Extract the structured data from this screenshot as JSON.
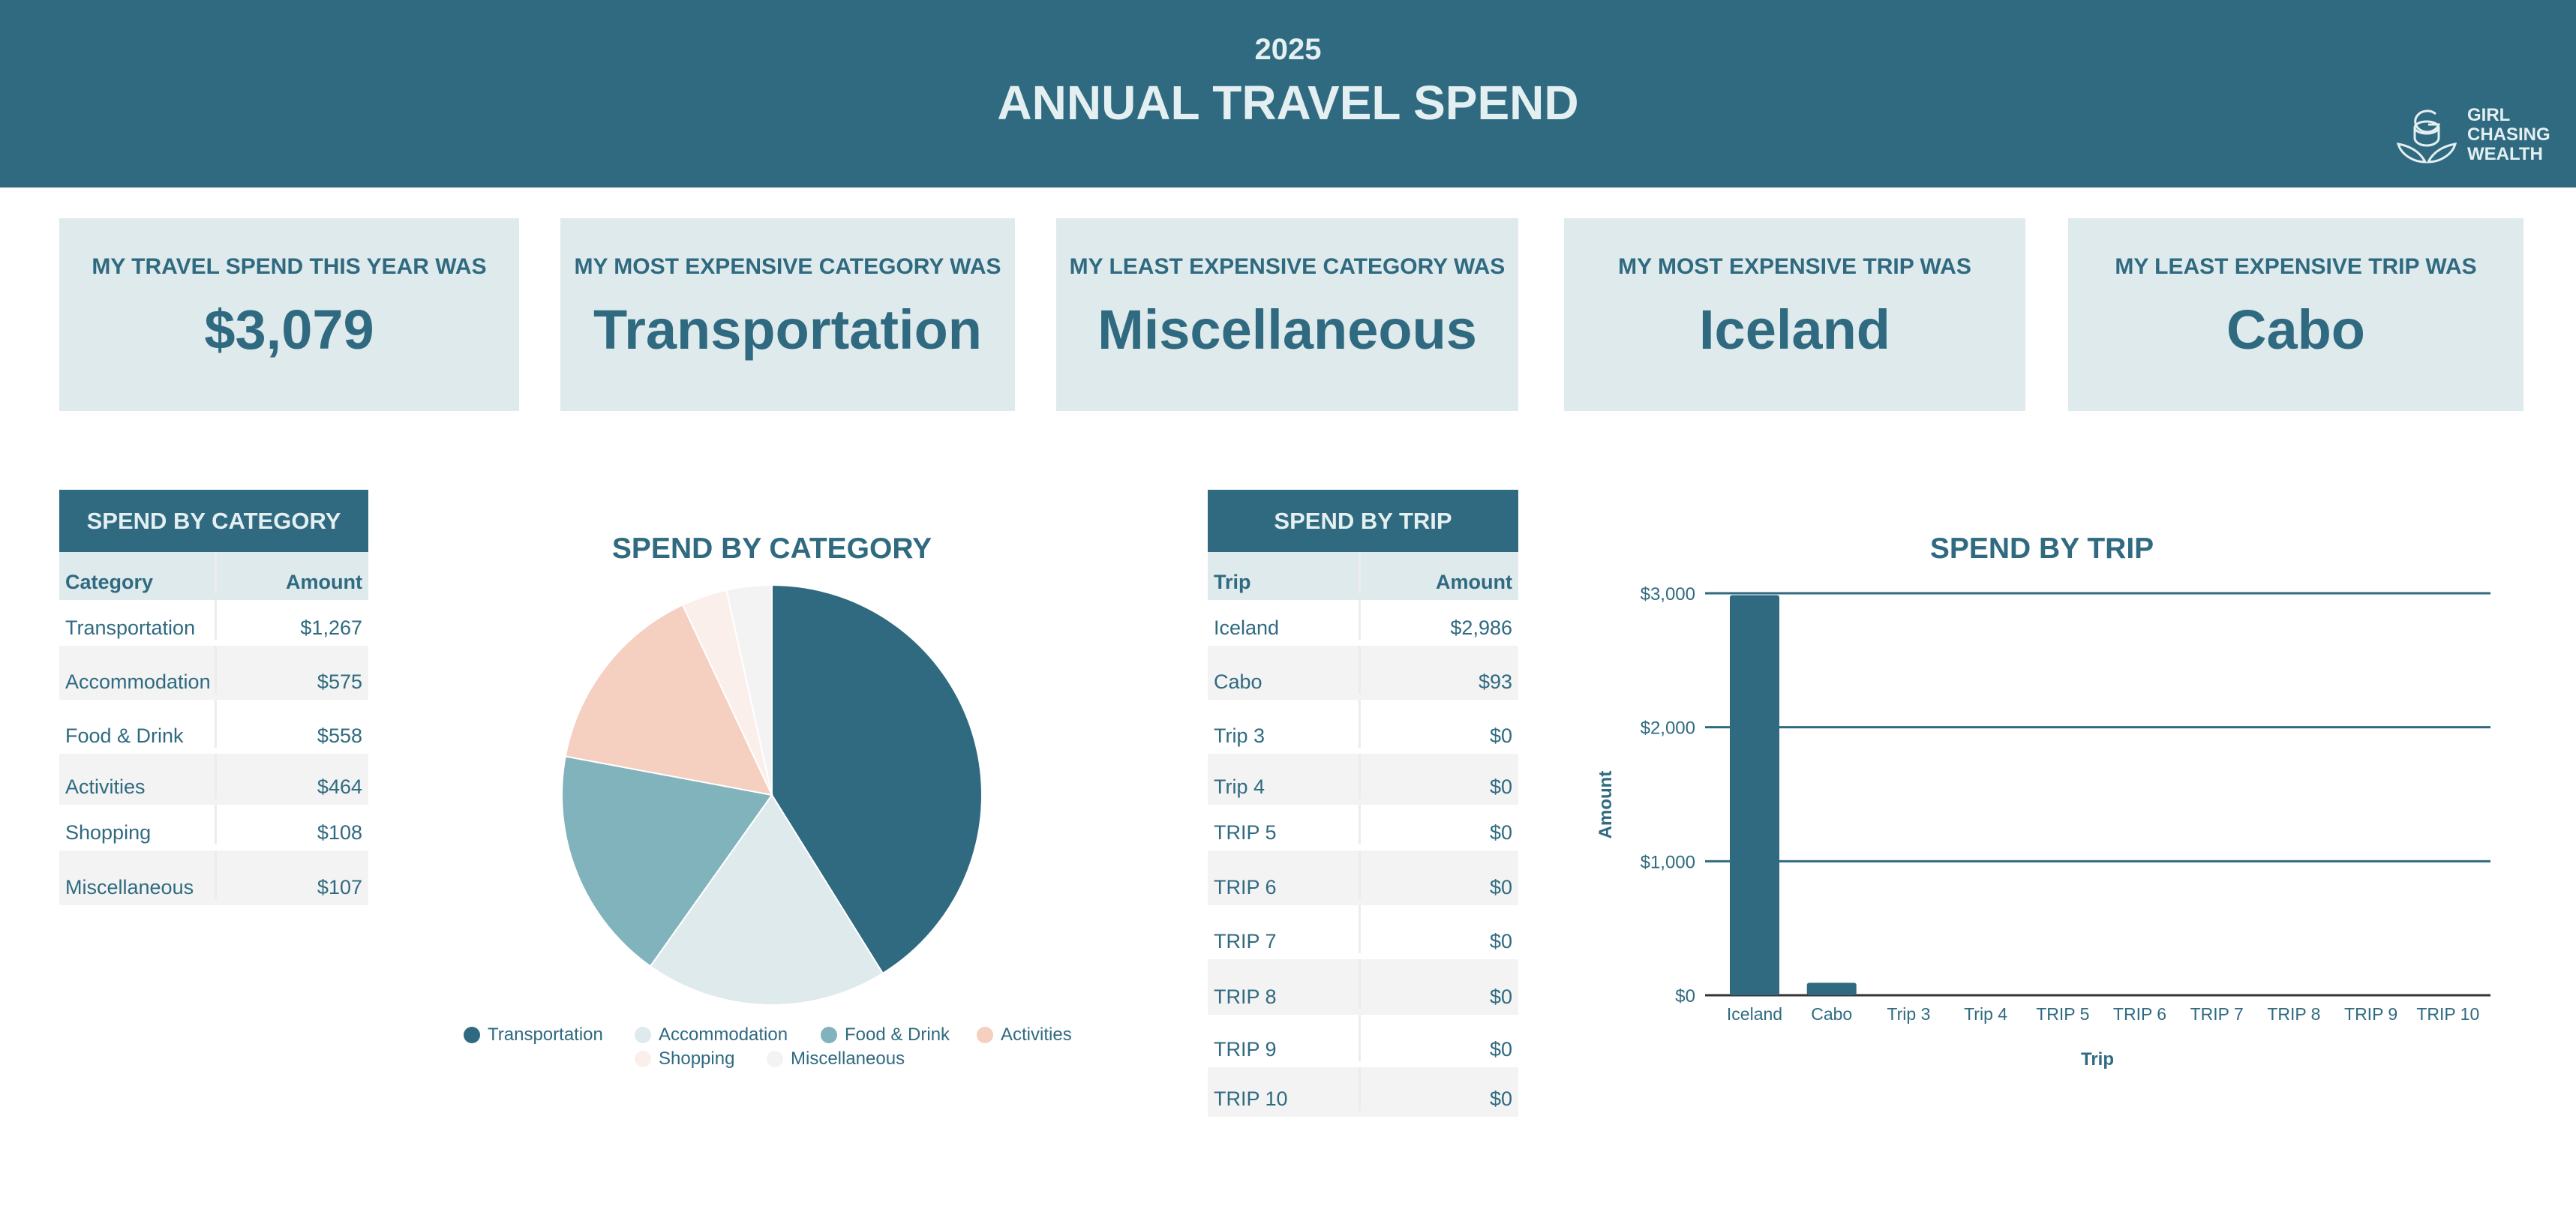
{
  "header": {
    "year": "2025",
    "title": "ANNUAL TRAVEL SPEND",
    "logo": "GIRL CHASING WEALTH"
  },
  "cards": [
    {
      "label": "MY TRAVEL SPEND THIS YEAR WAS",
      "value": "$3,079"
    },
    {
      "label": "MY MOST EXPENSIVE CATEGORY WAS",
      "value": "Transportation"
    },
    {
      "label": "MY LEAST EXPENSIVE CATEGORY WAS",
      "value": "Miscellaneous"
    },
    {
      "label": "MY MOST EXPENSIVE TRIP WAS",
      "value": "Iceland"
    },
    {
      "label": "MY LEAST EXPENSIVE TRIP WAS",
      "value": "Cabo"
    }
  ],
  "category_table": {
    "title": "SPEND BY CATEGORY",
    "col1": "Category",
    "col2": "Amount",
    "rows": [
      [
        "Transportation",
        "$1,267"
      ],
      [
        "Accommodation",
        "$575"
      ],
      [
        "Food & Drink",
        "$558"
      ],
      [
        "Activities",
        "$464"
      ],
      [
        "Shopping",
        "$108"
      ],
      [
        "Miscellaneous",
        "$107"
      ]
    ]
  },
  "trip_table": {
    "title": "SPEND BY TRIP",
    "col1": "Trip",
    "col2": "Amount",
    "rows": [
      [
        "Iceland",
        "$2,986"
      ],
      [
        "Cabo",
        "$93"
      ],
      [
        "Trip 3",
        "$0"
      ],
      [
        "Trip 4",
        "$0"
      ],
      [
        "TRIP 5",
        "$0"
      ],
      [
        "TRIP 6",
        "$0"
      ],
      [
        "TRIP 7",
        "$0"
      ],
      [
        "TRIP 8",
        "$0"
      ],
      [
        "TRIP 9",
        "$0"
      ],
      [
        "TRIP 10",
        "$0"
      ]
    ]
  },
  "colors": {
    "primary": "#306a80",
    "light": "#dfeaec"
  },
  "chart_data": [
    {
      "type": "pie",
      "title": "SPEND BY CATEGORY",
      "legend": "bottom",
      "categories": [
        "Transportation",
        "Accommodation",
        "Food & Drink",
        "Activities",
        "Shopping",
        "Miscellaneous"
      ],
      "values": [
        1267,
        575,
        558,
        464,
        108,
        107
      ],
      "colors": [
        "#306a80",
        "#dfeaec",
        "#81b3bd",
        "#f5cfc0",
        "#fbefeb",
        "#f3f3f3"
      ]
    },
    {
      "type": "bar",
      "title": "SPEND BY TRIP",
      "xlabel": "Trip",
      "ylabel": "Amount",
      "ylim": [
        0,
        3000
      ],
      "yticks": [
        "$0",
        "$1,000",
        "$2,000",
        "$3,000"
      ],
      "grid": true,
      "categories": [
        "Iceland",
        "Cabo",
        "Trip 3",
        "Trip 4",
        "TRIP 5",
        "TRIP 6",
        "TRIP 7",
        "TRIP 8",
        "TRIP 9",
        "TRIP 10"
      ],
      "values": [
        2986,
        93,
        0,
        0,
        0,
        0,
        0,
        0,
        0,
        0
      ]
    }
  ]
}
